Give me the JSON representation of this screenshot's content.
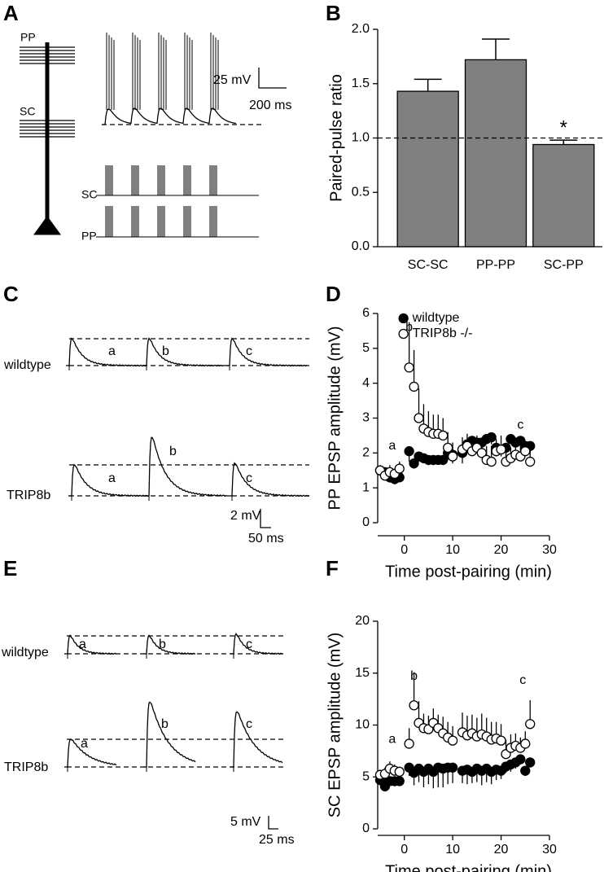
{
  "panel_labels": [
    "A",
    "B",
    "C",
    "D",
    "E",
    "F"
  ],
  "panel_a": {
    "dendrite_labels": [
      "PP",
      "SC"
    ],
    "scale_bar": [
      "25 mV",
      "200 ms"
    ],
    "stim_labels": [
      "SC",
      "PP"
    ]
  },
  "panel_c": {
    "rows": [
      "wildtype",
      "TRIP8b"
    ],
    "trace_labels": [
      [
        "a",
        "b",
        "c"
      ],
      [
        "a",
        "b",
        "c"
      ]
    ],
    "scale_bar": [
      "2 mV",
      "50 ms"
    ]
  },
  "panel_e": {
    "rows": [
      "wildtype",
      "TRIP8b"
    ],
    "trace_labels": [
      [
        "a",
        "b",
        "c"
      ],
      [
        "a",
        "b",
        "c"
      ]
    ],
    "scale_bar": [
      "5 mV",
      "25 ms"
    ]
  },
  "chart_data": [
    {
      "type": "bar",
      "ylabel": "Paired-pulse ratio",
      "categories": [
        "SC-SC",
        "PP-PP",
        "SC-PP"
      ],
      "values": [
        1.43,
        1.72,
        0.94
      ],
      "errors": [
        0.11,
        0.19,
        0.04
      ],
      "color": "#808080",
      "ylim": [
        0,
        2
      ],
      "yticks": [
        {
          "value": 0,
          "label": "0.0"
        },
        0.5,
        {
          "value": 1,
          "label": "1.0"
        },
        1.5,
        {
          "value": 2,
          "label": "2.0"
        }
      ],
      "reference_line": 1,
      "annotation": "*"
    },
    {
      "type": "scatter",
      "ylabel": "PP EPSP amplitude (mV)",
      "xlabel": "Time post-pairing (min)",
      "x": [
        -5,
        -4,
        -3,
        -2,
        -1,
        1,
        2,
        3,
        4,
        5,
        6,
        7,
        8,
        9,
        10,
        12,
        13,
        14,
        15,
        16,
        17,
        18,
        19,
        20,
        21,
        22,
        23,
        24,
        25,
        26
      ],
      "series": [
        {
          "name": "wildtype",
          "color": "#000000",
          "marker_fill": "#000000",
          "error_direction": "down",
          "values": [
            1.5,
            1.45,
            1.3,
            1.25,
            1.3,
            2.05,
            1.7,
            1.9,
            1.85,
            1.8,
            1.8,
            1.8,
            1.8,
            2.0,
            1.95,
            2.0,
            2.25,
            2.35,
            2.3,
            2.3,
            2.4,
            2.45,
            2.15,
            2.1,
            2.15,
            2.4,
            2.3,
            2.35,
            2.2,
            2.2
          ],
          "errors": [
            0.15,
            0.2,
            0.15,
            0.15,
            0.1,
            0.3,
            0.15,
            0.15,
            0.15,
            0.15,
            0.15,
            0.1,
            0.15,
            0.2,
            0.25,
            0.3,
            0.2,
            0.15,
            0.15,
            0.2,
            0.15,
            0.2,
            0.25,
            0.2,
            0.2,
            0.15,
            0.1,
            0.15,
            0.2,
            0.2
          ]
        },
        {
          "name": "TRIP8b -/-",
          "color": "#000000",
          "marker_fill": "#ffffff",
          "error_direction": "up",
          "values": [
            1.5,
            1.35,
            1.45,
            1.4,
            1.55,
            4.45,
            3.9,
            3.0,
            2.7,
            2.6,
            2.55,
            2.55,
            2.5,
            2.15,
            1.9,
            2.1,
            2.2,
            2.05,
            2.15,
            2.0,
            1.8,
            1.75,
            2.05,
            2.1,
            1.75,
            1.85,
            1.95,
            1.9,
            2.05,
            1.75
          ],
          "errors": [
            0.15,
            0.15,
            0.2,
            0.15,
            0.2,
            1.3,
            1.05,
            0.85,
            0.7,
            0.6,
            0.55,
            0.55,
            0.5,
            0.45,
            0.4,
            0.35,
            0.35,
            0.3,
            0.35,
            0.4,
            0.4,
            0.45,
            0.35,
            0.4,
            0.35,
            0.3,
            0.35,
            0.35,
            0.3,
            0.3
          ]
        }
      ],
      "xlim": [
        -5.5,
        30
      ],
      "ylim": [
        0,
        6
      ],
      "xticks": [
        0,
        10,
        20,
        30
      ],
      "yticks": [
        0,
        1,
        2,
        3,
        4,
        5,
        6
      ],
      "legend": "top",
      "annotations": [
        "a",
        "b",
        "c"
      ]
    },
    {
      "type": "scatter",
      "ylabel": "SC EPSP amplitude (mV)",
      "xlabel": "Time post-pairing (min)",
      "x": [
        -5,
        -4,
        -3,
        -2,
        -1,
        1,
        2,
        3,
        4,
        5,
        6,
        7,
        8,
        9,
        10,
        12,
        13,
        14,
        15,
        16,
        17,
        18,
        19,
        20,
        21,
        22,
        23,
        24,
        25,
        26
      ],
      "series": [
        {
          "color": "#000000",
          "marker_fill": "#000000",
          "error_direction": "down",
          "values": [
            4.7,
            4.1,
            4.6,
            4.6,
            4.6,
            5.9,
            5.4,
            5.8,
            5.5,
            5.8,
            5.5,
            5.9,
            5.8,
            5.9,
            5.9,
            5.6,
            5.7,
            5.5,
            5.8,
            5.6,
            5.8,
            5.5,
            5.7,
            5.6,
            6.0,
            6.2,
            6.4,
            6.7,
            5.6,
            6.4
          ],
          "errors": [
            0.5,
            0.5,
            0.4,
            0.5,
            0.4,
            0.8,
            1.2,
            1.3,
            1.5,
            1.5,
            1.6,
            1.9,
            1.8,
            1.6,
            1.5,
            1.2,
            1.4,
            1.1,
            1.3,
            1.4,
            1.3,
            1.2,
            1.0,
            0.8,
            0.6,
            0.7,
            0.6,
            0.5,
            0.5,
            0.5
          ]
        },
        {
          "color": "#000000",
          "marker_fill": "#ffffff",
          "error_direction": "up",
          "values": [
            5.2,
            5.3,
            5.8,
            5.6,
            5.5,
            8.2,
            11.9,
            10.2,
            9.7,
            9.6,
            10.2,
            9.7,
            9.2,
            8.8,
            8.5,
            9.3,
            9.0,
            9.2,
            8.9,
            9.1,
            8.9,
            8.6,
            8.7,
            8.5,
            7.2,
            7.8,
            8.0,
            7.8,
            8.2,
            10.1
          ],
          "errors": [
            0.5,
            0.6,
            0.7,
            0.6,
            0.5,
            1.5,
            3.2,
            2.1,
            1.4,
            1.3,
            1.4,
            1.3,
            1.6,
            1.5,
            1.4,
            1.9,
            1.9,
            1.8,
            1.8,
            2.0,
            1.8,
            1.7,
            1.6,
            1.6,
            1.4,
            1.3,
            1.2,
            1.0,
            1.2,
            2.3
          ]
        }
      ],
      "xlim": [
        -5.5,
        30
      ],
      "ylim": [
        0,
        20
      ],
      "xticks": [
        0,
        10,
        20,
        30
      ],
      "yticks": [
        0,
        5,
        10,
        15,
        20
      ],
      "annotations": [
        "a",
        "b",
        "c"
      ]
    }
  ]
}
